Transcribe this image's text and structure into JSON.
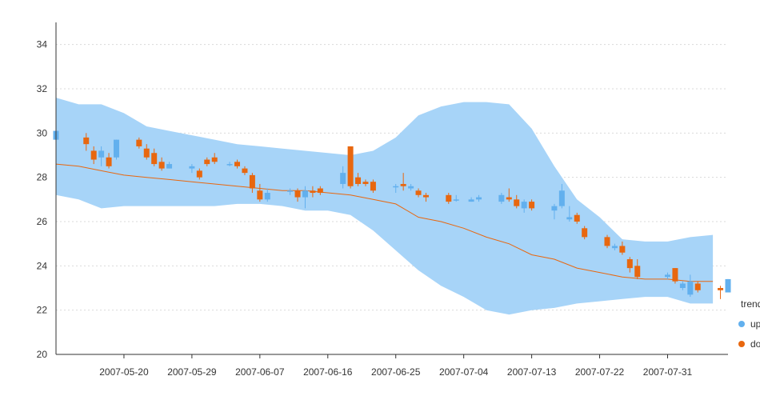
{
  "chart_data": {
    "type": "candlestick",
    "title": "",
    "xlabel": "",
    "ylabel": "",
    "ylim": [
      20,
      35
    ],
    "yticks": [
      20,
      22,
      24,
      26,
      28,
      30,
      32,
      34
    ],
    "x_tick_labels": [
      "2007-05-20",
      "2007-05-29",
      "2007-06-07",
      "2007-06-16",
      "2007-06-25",
      "2007-07-04",
      "2007-07-13",
      "2007-07-22",
      "2007-07-31"
    ],
    "grid": "horizontal-dotted",
    "legend": {
      "title": "trend",
      "position": "bottom-right",
      "items": [
        {
          "label": "up",
          "color": "#62b0ee"
        },
        {
          "label": "down",
          "color": "#e8670f"
        }
      ]
    },
    "band_color": "#a7d4f8",
    "moving_average_color": "#e8670f",
    "band": {
      "x": [
        "2007-05-11",
        "2007-05-14",
        "2007-05-17",
        "2007-05-20",
        "2007-05-23",
        "2007-05-26",
        "2007-05-29",
        "2007-06-01",
        "2007-06-04",
        "2007-06-07",
        "2007-06-10",
        "2007-06-13",
        "2007-06-16",
        "2007-06-19",
        "2007-06-22",
        "2007-06-25",
        "2007-06-28",
        "2007-07-01",
        "2007-07-04",
        "2007-07-07",
        "2007-07-10",
        "2007-07-13",
        "2007-07-16",
        "2007-07-19",
        "2007-07-22",
        "2007-07-25",
        "2007-07-28",
        "2007-07-31",
        "2007-08-03",
        "2007-08-06"
      ],
      "upper": [
        31.6,
        31.3,
        31.3,
        30.9,
        30.3,
        30.1,
        29.9,
        29.7,
        29.5,
        29.4,
        29.3,
        29.2,
        29.1,
        29.0,
        29.2,
        29.8,
        30.8,
        31.2,
        31.4,
        31.4,
        31.3,
        30.2,
        28.5,
        27.0,
        26.2,
        25.2,
        25.1,
        25.1,
        25.3,
        25.4
      ],
      "lower": [
        27.2,
        27.0,
        26.6,
        26.7,
        26.7,
        26.7,
        26.7,
        26.7,
        26.8,
        26.8,
        26.7,
        26.5,
        26.5,
        26.3,
        25.6,
        24.7,
        23.8,
        23.1,
        22.6,
        22.0,
        21.8,
        22.0,
        22.1,
        22.3,
        22.4,
        22.5,
        22.6,
        22.6,
        22.3,
        22.3
      ]
    },
    "moving_average": {
      "x": [
        "2007-05-11",
        "2007-05-14",
        "2007-05-17",
        "2007-05-20",
        "2007-05-23",
        "2007-05-26",
        "2007-05-29",
        "2007-06-01",
        "2007-06-04",
        "2007-06-07",
        "2007-06-10",
        "2007-06-13",
        "2007-06-16",
        "2007-06-19",
        "2007-06-22",
        "2007-06-25",
        "2007-06-28",
        "2007-07-01",
        "2007-07-04",
        "2007-07-07",
        "2007-07-10",
        "2007-07-13",
        "2007-07-16",
        "2007-07-19",
        "2007-07-22",
        "2007-07-25",
        "2007-07-28",
        "2007-07-31",
        "2007-08-03",
        "2007-08-06"
      ],
      "values": [
        28.6,
        28.5,
        28.3,
        28.1,
        28.0,
        27.9,
        27.8,
        27.7,
        27.6,
        27.5,
        27.4,
        27.4,
        27.3,
        27.2,
        27.0,
        26.8,
        26.2,
        26.0,
        25.7,
        25.3,
        25.0,
        24.5,
        24.3,
        23.9,
        23.7,
        23.5,
        23.4,
        23.4,
        23.3,
        23.3
      ]
    },
    "candles": [
      {
        "date": "2007-05-11",
        "open": 29.7,
        "close": 30.1,
        "high": 30.2,
        "low": 29.6,
        "trend": "up"
      },
      {
        "date": "2007-05-15",
        "open": 29.8,
        "close": 29.5,
        "high": 30.0,
        "low": 29.2,
        "trend": "down"
      },
      {
        "date": "2007-05-16",
        "open": 29.2,
        "close": 28.8,
        "high": 29.4,
        "low": 28.6,
        "trend": "down"
      },
      {
        "date": "2007-05-17",
        "open": 28.9,
        "close": 29.2,
        "high": 29.4,
        "low": 28.5,
        "trend": "up"
      },
      {
        "date": "2007-05-18",
        "open": 28.9,
        "close": 28.5,
        "high": 29.1,
        "low": 28.4,
        "trend": "down"
      },
      {
        "date": "2007-05-19",
        "open": 28.9,
        "close": 29.7,
        "high": 29.7,
        "low": 28.8,
        "trend": "up"
      },
      {
        "date": "2007-05-22",
        "open": 29.7,
        "close": 29.4,
        "high": 29.8,
        "low": 29.3,
        "trend": "down"
      },
      {
        "date": "2007-05-23",
        "open": 29.3,
        "close": 28.9,
        "high": 29.5,
        "low": 28.8,
        "trend": "down"
      },
      {
        "date": "2007-05-24",
        "open": 29.1,
        "close": 28.6,
        "high": 29.3,
        "low": 28.5,
        "trend": "down"
      },
      {
        "date": "2007-05-25",
        "open": 28.7,
        "close": 28.4,
        "high": 28.9,
        "low": 28.3,
        "trend": "down"
      },
      {
        "date": "2007-05-26",
        "open": 28.4,
        "close": 28.6,
        "high": 28.7,
        "low": 28.4,
        "trend": "up"
      },
      {
        "date": "2007-05-29",
        "open": 28.4,
        "close": 28.5,
        "high": 28.6,
        "low": 28.2,
        "trend": "up"
      },
      {
        "date": "2007-05-30",
        "open": 28.3,
        "close": 28.0,
        "high": 28.4,
        "low": 27.9,
        "trend": "down"
      },
      {
        "date": "2007-05-31",
        "open": 28.8,
        "close": 28.6,
        "high": 28.9,
        "low": 28.5,
        "trend": "down"
      },
      {
        "date": "2007-06-01",
        "open": 28.9,
        "close": 28.7,
        "high": 29.1,
        "low": 28.6,
        "trend": "down"
      },
      {
        "date": "2007-06-03",
        "open": 28.6,
        "close": 28.6,
        "high": 28.7,
        "low": 28.5,
        "trend": "up"
      },
      {
        "date": "2007-06-04",
        "open": 28.7,
        "close": 28.5,
        "high": 28.8,
        "low": 28.4,
        "trend": "down"
      },
      {
        "date": "2007-06-05",
        "open": 28.4,
        "close": 28.2,
        "high": 28.5,
        "low": 28.1,
        "trend": "down"
      },
      {
        "date": "2007-06-06",
        "open": 28.1,
        "close": 27.5,
        "high": 28.2,
        "low": 27.3,
        "trend": "down"
      },
      {
        "date": "2007-06-07",
        "open": 27.4,
        "close": 27.0,
        "high": 27.7,
        "low": 26.9,
        "trend": "down"
      },
      {
        "date": "2007-06-08",
        "open": 27.0,
        "close": 27.3,
        "high": 27.5,
        "low": 26.9,
        "trend": "up"
      },
      {
        "date": "2007-06-11",
        "open": 27.4,
        "close": 27.4,
        "high": 27.5,
        "low": 27.2,
        "trend": "up"
      },
      {
        "date": "2007-06-12",
        "open": 27.4,
        "close": 27.1,
        "high": 27.5,
        "low": 26.9,
        "trend": "down"
      },
      {
        "date": "2007-06-13",
        "open": 27.1,
        "close": 27.4,
        "high": 27.6,
        "low": 26.6,
        "trend": "up"
      },
      {
        "date": "2007-06-14",
        "open": 27.4,
        "close": 27.3,
        "high": 27.6,
        "low": 27.1,
        "trend": "down"
      },
      {
        "date": "2007-06-15",
        "open": 27.5,
        "close": 27.3,
        "high": 27.6,
        "low": 27.2,
        "trend": "down"
      },
      {
        "date": "2007-06-18",
        "open": 27.7,
        "close": 28.2,
        "high": 28.5,
        "low": 27.5,
        "trend": "up"
      },
      {
        "date": "2007-06-19",
        "open": 29.4,
        "close": 27.6,
        "high": 29.4,
        "low": 27.5,
        "trend": "down"
      },
      {
        "date": "2007-06-20",
        "open": 28.0,
        "close": 27.7,
        "high": 28.2,
        "low": 27.6,
        "trend": "down"
      },
      {
        "date": "2007-06-21",
        "open": 27.8,
        "close": 27.7,
        "high": 27.9,
        "low": 27.6,
        "trend": "down"
      },
      {
        "date": "2007-06-22",
        "open": 27.8,
        "close": 27.4,
        "high": 27.9,
        "low": 27.3,
        "trend": "down"
      },
      {
        "date": "2007-06-25",
        "open": 27.6,
        "close": 27.6,
        "high": 27.7,
        "low": 27.3,
        "trend": "up"
      },
      {
        "date": "2007-06-26",
        "open": 27.7,
        "close": 27.6,
        "high": 28.2,
        "low": 27.4,
        "trend": "down"
      },
      {
        "date": "2007-06-27",
        "open": 27.5,
        "close": 27.6,
        "high": 27.7,
        "low": 27.4,
        "trend": "up"
      },
      {
        "date": "2007-06-28",
        "open": 27.4,
        "close": 27.2,
        "high": 27.5,
        "low": 27.1,
        "trend": "down"
      },
      {
        "date": "2007-06-29",
        "open": 27.2,
        "close": 27.1,
        "high": 27.3,
        "low": 26.9,
        "trend": "down"
      },
      {
        "date": "2007-07-02",
        "open": 27.2,
        "close": 26.9,
        "high": 27.3,
        "low": 26.8,
        "trend": "down"
      },
      {
        "date": "2007-07-03",
        "open": 27.0,
        "close": 27.0,
        "high": 27.2,
        "low": 26.9,
        "trend": "up"
      },
      {
        "date": "2007-07-05",
        "open": 26.9,
        "close": 27.0,
        "high": 27.1,
        "low": 26.9,
        "trend": "up"
      },
      {
        "date": "2007-07-06",
        "open": 27.0,
        "close": 27.1,
        "high": 27.2,
        "low": 26.9,
        "trend": "up"
      },
      {
        "date": "2007-07-09",
        "open": 26.9,
        "close": 27.2,
        "high": 27.3,
        "low": 26.8,
        "trend": "up"
      },
      {
        "date": "2007-07-10",
        "open": 27.1,
        "close": 27.0,
        "high": 27.5,
        "low": 26.9,
        "trend": "down"
      },
      {
        "date": "2007-07-11",
        "open": 27.0,
        "close": 26.7,
        "high": 27.2,
        "low": 26.6,
        "trend": "down"
      },
      {
        "date": "2007-07-12",
        "open": 26.6,
        "close": 26.9,
        "high": 27.0,
        "low": 26.4,
        "trend": "up"
      },
      {
        "date": "2007-07-13",
        "open": 26.9,
        "close": 26.6,
        "high": 27.0,
        "low": 26.5,
        "trend": "down"
      },
      {
        "date": "2007-07-16",
        "open": 26.5,
        "close": 26.7,
        "high": 26.8,
        "low": 26.1,
        "trend": "up"
      },
      {
        "date": "2007-07-17",
        "open": 26.7,
        "close": 27.4,
        "high": 27.7,
        "low": 26.6,
        "trend": "up"
      },
      {
        "date": "2007-07-18",
        "open": 26.1,
        "close": 26.2,
        "high": 26.7,
        "low": 26.0,
        "trend": "up"
      },
      {
        "date": "2007-07-19",
        "open": 26.3,
        "close": 26.0,
        "high": 26.4,
        "low": 25.9,
        "trend": "down"
      },
      {
        "date": "2007-07-20",
        "open": 25.7,
        "close": 25.3,
        "high": 25.8,
        "low": 25.2,
        "trend": "down"
      },
      {
        "date": "2007-07-23",
        "open": 25.3,
        "close": 24.9,
        "high": 25.4,
        "low": 24.8,
        "trend": "down"
      },
      {
        "date": "2007-07-24",
        "open": 24.8,
        "close": 24.9,
        "high": 25.0,
        "low": 24.7,
        "trend": "up"
      },
      {
        "date": "2007-07-25",
        "open": 24.9,
        "close": 24.6,
        "high": 25.1,
        "low": 24.5,
        "trend": "down"
      },
      {
        "date": "2007-07-26",
        "open": 24.3,
        "close": 23.9,
        "high": 24.4,
        "low": 23.7,
        "trend": "down"
      },
      {
        "date": "2007-07-27",
        "open": 24.0,
        "close": 23.5,
        "high": 24.3,
        "low": 23.4,
        "trend": "down"
      },
      {
        "date": "2007-07-31",
        "open": 23.5,
        "close": 23.6,
        "high": 23.7,
        "low": 23.4,
        "trend": "up"
      },
      {
        "date": "2007-08-01",
        "open": 23.9,
        "close": 23.3,
        "high": 23.9,
        "low": 23.2,
        "trend": "down"
      },
      {
        "date": "2007-08-02",
        "open": 23.0,
        "close": 23.2,
        "high": 23.3,
        "low": 22.9,
        "trend": "up"
      },
      {
        "date": "2007-08-03",
        "open": 22.7,
        "close": 23.3,
        "high": 23.6,
        "low": 22.6,
        "trend": "up"
      },
      {
        "date": "2007-08-04",
        "open": 23.2,
        "close": 22.9,
        "high": 23.3,
        "low": 22.8,
        "trend": "down"
      },
      {
        "date": "2007-08-07",
        "open": 23.0,
        "close": 22.9,
        "high": 23.1,
        "low": 22.5,
        "trend": "down"
      },
      {
        "date": "2007-08-08",
        "open": 22.8,
        "close": 23.4,
        "high": 23.4,
        "low": 22.8,
        "trend": "up"
      }
    ]
  }
}
